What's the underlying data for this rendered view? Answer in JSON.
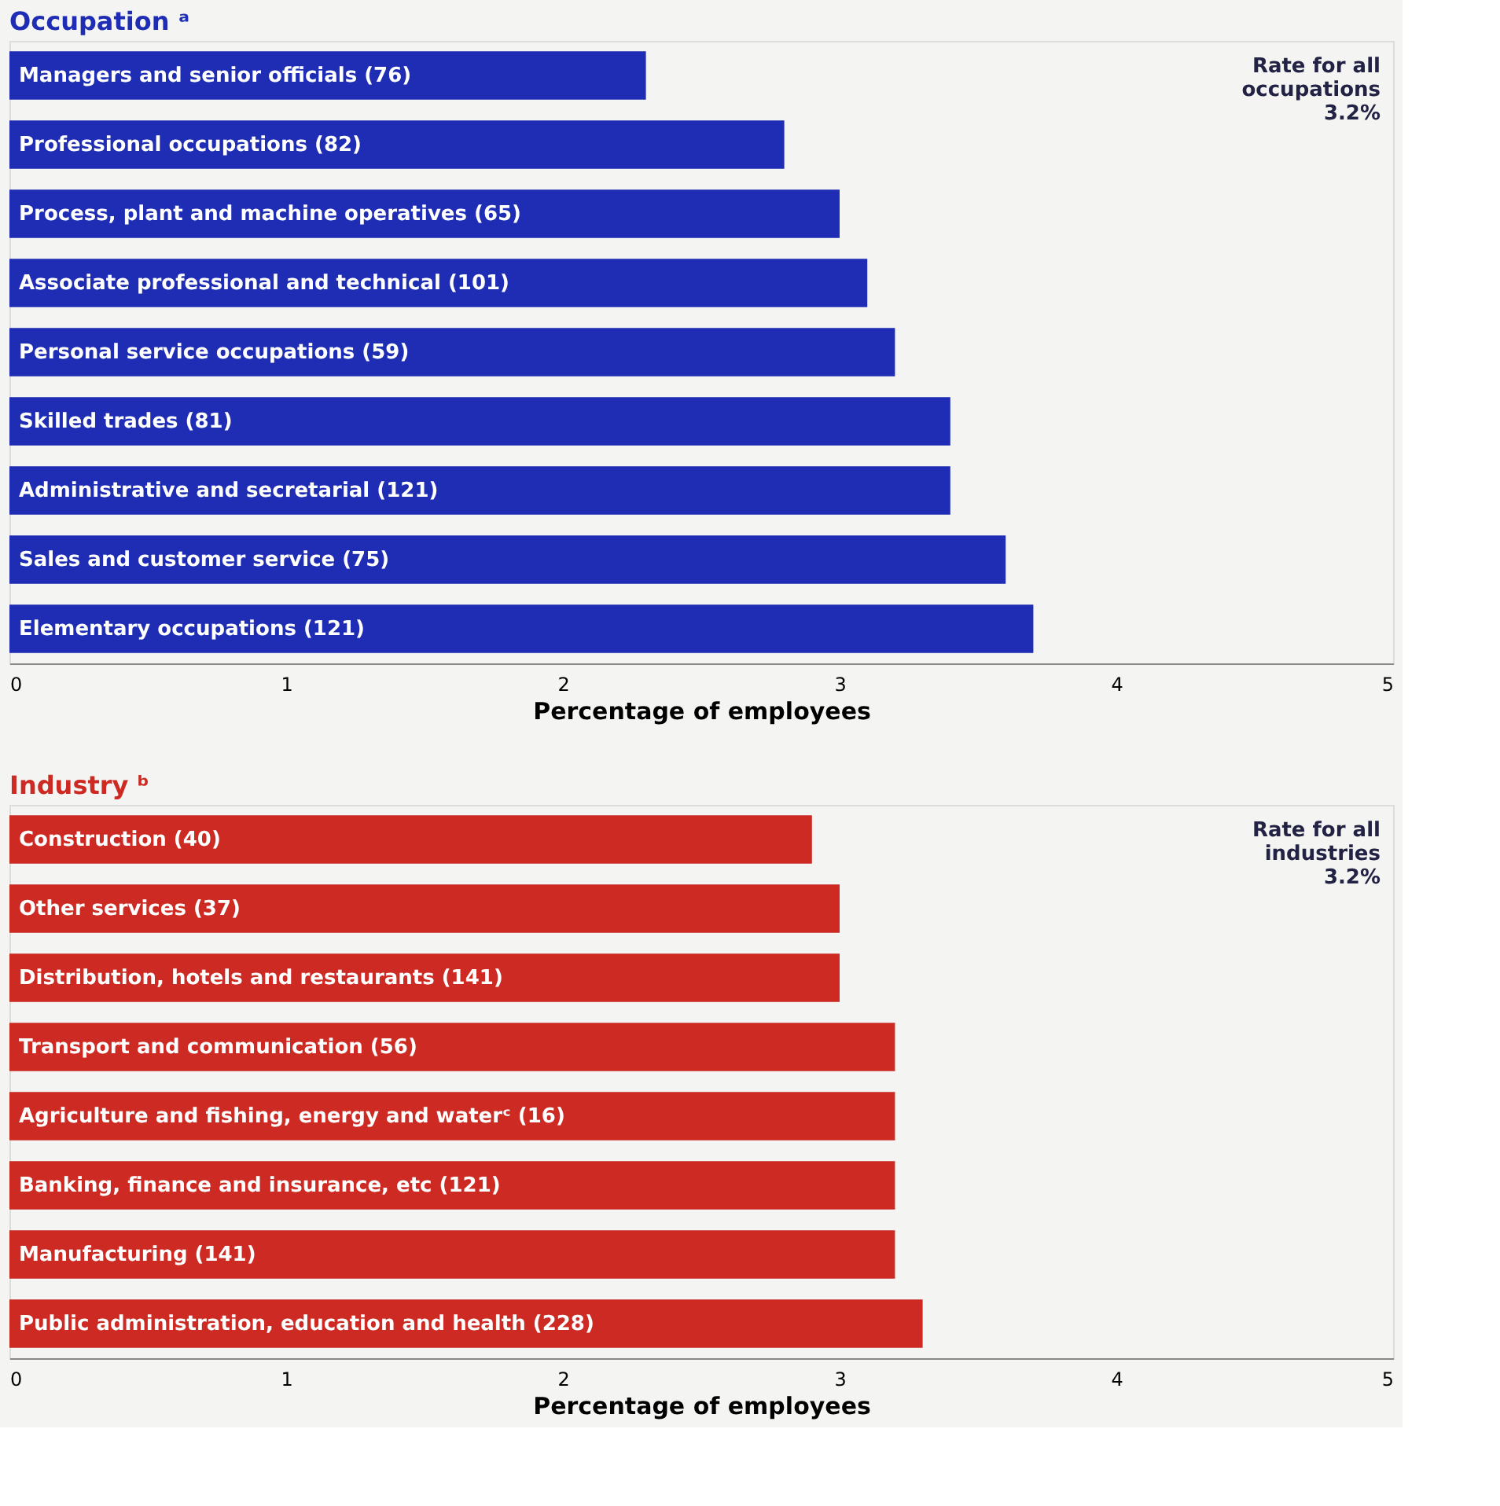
{
  "chart_data": [
    {
      "type": "bar",
      "orientation": "horizontal",
      "title": "Occupation ᵃ",
      "xlabel": "Percentage of employees",
      "categories": [
        "Managers and senior officials (76)",
        "Professional occupations (82)",
        "Process, plant and machine operatives (65)",
        "Associate professional and technical (101)",
        "Personal service occupations (59)",
        "Skilled trades (81)",
        "Administrative and secretarial (121)",
        "Sales and customer service (75)",
        "Elementary occupations (121)"
      ],
      "values": [
        2.3,
        2.8,
        3.0,
        3.1,
        3.2,
        3.4,
        3.4,
        3.6,
        3.7
      ],
      "color": "#1e2db4",
      "xlim": [
        0,
        5
      ],
      "xticks": [
        0,
        1,
        2,
        3,
        4,
        5
      ],
      "grid": false,
      "annotations": [
        "Rate for all\noccupations\n3.2%"
      ]
    },
    {
      "type": "bar",
      "orientation": "horizontal",
      "title": "Industry ᵇ",
      "xlabel": "Percentage of employees",
      "categories": [
        "Construction (40)",
        "Other services (37)",
        "Distribution, hotels and restaurants (141)",
        "Transport and communication (56)",
        "Agriculture and fishing, energy and waterᶜ (16)",
        "Banking, finance and insurance, etc (121)",
        "Manufacturing (141)",
        "Public administration, education and health (228)"
      ],
      "values": [
        2.9,
        3.0,
        3.0,
        3.2,
        3.2,
        3.2,
        3.2,
        3.3
      ],
      "color": "#cc2a22",
      "xlim": [
        0,
        5
      ],
      "xticks": [
        0,
        1,
        2,
        3,
        4,
        5
      ],
      "grid": false,
      "annotations": [
        "Rate for all\nindustries\n3.2%"
      ]
    }
  ]
}
